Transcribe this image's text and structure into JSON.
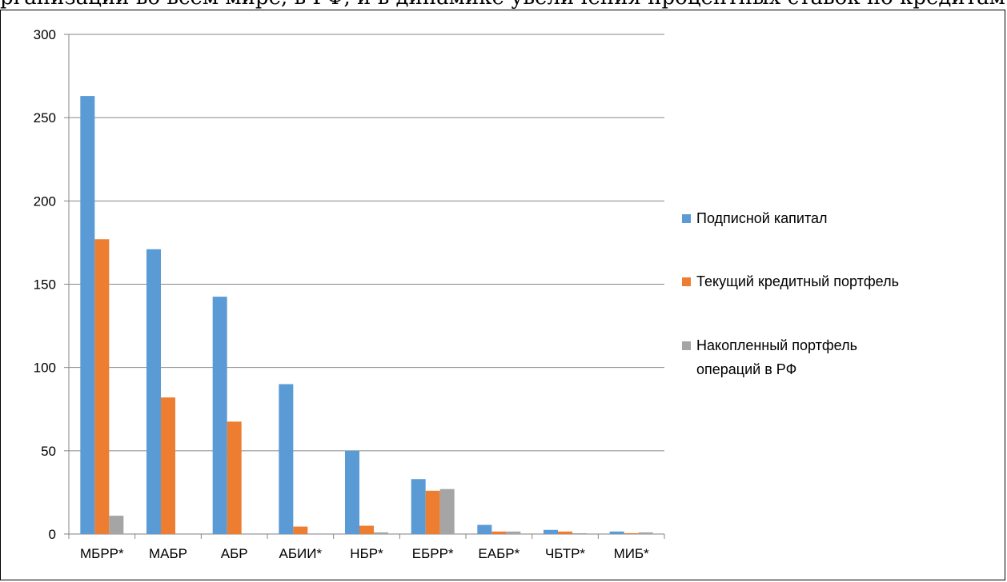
{
  "document": {
    "top_text": "рганизаций во всём мире, в РФ, и в динамике увеличения процентных ставок по кредитам (в тру"
  },
  "chart_data": {
    "type": "bar",
    "categories": [
      "МБРР*",
      "МАБР",
      "АБР",
      "АБИИ*",
      "НБР*",
      "ЕБРР*",
      "ЕАБР*",
      "ЧБТР*",
      "МИБ*"
    ],
    "series": [
      {
        "name": "Подписной капитал",
        "values": [
          263,
          171,
          142.5,
          90,
          50,
          33,
          5.5,
          2.5,
          1.5
        ],
        "color": "#5B9BD5"
      },
      {
        "name": "Текущий кредитный портфель",
        "values": [
          177,
          82,
          67.5,
          4.5,
          5,
          26,
          1.5,
          1.5,
          0.5
        ],
        "color": "#ED7D31"
      },
      {
        "name": "Накопленный портфель операций в РФ",
        "values": [
          11,
          0,
          0,
          0,
          1,
          27,
          1.5,
          0.5,
          1
        ],
        "color": "#A5A5A5"
      }
    ],
    "ylim": [
      0,
      300
    ],
    "yticks": [
      "0",
      "50",
      "100",
      "150",
      "200",
      "250",
      "300"
    ],
    "title": "",
    "xlabel": "",
    "ylabel": "",
    "grid": true,
    "legend_position": "right"
  }
}
